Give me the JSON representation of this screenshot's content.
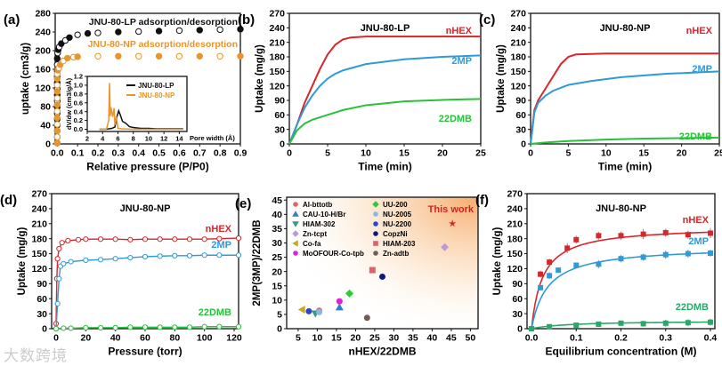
{
  "watermark": "大数跨境",
  "chart_data": [
    {
      "id": "a",
      "panel_label": "(a)",
      "type": "scatter",
      "xlabel": "Relative pressure (P/P0)",
      "ylabel": "uptake (cm3/g)",
      "xlim": [
        -0.01,
        0.9
      ],
      "ylim": [
        0,
        280
      ],
      "xticks": [
        "0.0",
        "0.1",
        "0.2",
        "0.3",
        "0.4",
        "0.5",
        "0.6",
        "0.7",
        "0.8",
        "0.9"
      ],
      "xtick_values": [
        0,
        0.1,
        0.2,
        0.3,
        0.4,
        0.5,
        0.6,
        0.7,
        0.8,
        0.9
      ],
      "yticks": [
        "0",
        "40",
        "80",
        "120",
        "160",
        "200",
        "240",
        "280"
      ],
      "ytick_values": [
        0,
        40,
        80,
        120,
        160,
        200,
        240,
        280
      ],
      "series": [
        {
          "name": "JNU-80-LP adsorption/desorption",
          "color": "#111111",
          "x": [
            0,
            0,
            0,
            0,
            0,
            0,
            0,
            0,
            0,
            0,
            0,
            0,
            0,
            0,
            0,
            0.002,
            0.005,
            0.01,
            0.02,
            0.04,
            0.06,
            0.1,
            0.15,
            0.2,
            0.3,
            0.4,
            0.5,
            0.6,
            0.7,
            0.8,
            0.9
          ],
          "y": [
            2,
            15,
            28,
            40,
            53,
            66,
            79,
            92,
            105,
            118,
            131,
            144,
            157,
            170,
            183,
            195,
            202,
            208,
            215,
            222,
            228,
            234,
            237,
            238,
            240,
            241,
            242,
            243,
            244,
            245,
            246
          ]
        },
        {
          "name": "JNU-80-NP adsorption/desorption",
          "color": "#e8952e",
          "x": [
            0,
            0,
            0,
            0,
            0,
            0,
            0,
            0,
            0,
            0,
            0,
            0,
            0.003,
            0.008,
            0.015,
            0.03,
            0.05,
            0.08,
            0.1,
            0.2,
            0.3,
            0.4,
            0.5,
            0.6,
            0.7,
            0.8,
            0.9
          ],
          "y": [
            2,
            15,
            28,
            42,
            56,
            70,
            84,
            98,
            112,
            126,
            140,
            150,
            158,
            163,
            170,
            178,
            184,
            186,
            187,
            188,
            188,
            188,
            188,
            188,
            188,
            188,
            188
          ]
        }
      ],
      "inset": {
        "xlabel": "Pore width (Å)",
        "ylabel": "dV/dw (cm3/g/Å)",
        "xlim": [
          2,
          15
        ],
        "ylim": [
          -0.05,
          1.2
        ],
        "xticks": [
          "2",
          "4",
          "6",
          "8",
          "10",
          "12",
          "14"
        ],
        "xtick_values": [
          2,
          4,
          6,
          8,
          10,
          12,
          14
        ],
        "yticks": [
          "0.0",
          "0.2",
          "0.4",
          "0.6",
          "0.8",
          "1.0",
          "1.2"
        ],
        "ytick_values": [
          0,
          0.2,
          0.4,
          0.6,
          0.8,
          1.0,
          1.2
        ],
        "series": [
          {
            "name": "JNU-80-LP",
            "color": "#111111",
            "x": [
              3.6,
              4.5,
              5.2,
              5.6,
              5.9,
              6.1,
              6.3,
              6.6,
              7.0,
              7.5,
              8,
              9,
              10,
              11,
              12,
              13,
              14.5
            ],
            "y": [
              0,
              0,
              0.02,
              0.05,
              0.3,
              0.42,
              0.33,
              0.18,
              0.14,
              0.06,
              0.04,
              0.02,
              0.02,
              0.01,
              0.01,
              0.01,
              0.01
            ]
          },
          {
            "name": "JNU-80-NP",
            "color": "#e8952e",
            "x": [
              3.6,
              4.5,
              4.8,
              4.9,
              5.0,
              5.1,
              5.3,
              5.5,
              5.6,
              5.8,
              6.0,
              6.5,
              8,
              10,
              12,
              14.5
            ],
            "y": [
              0,
              0,
              0.2,
              1.05,
              0.3,
              0.5,
              0.28,
              0.48,
              0.1,
              0.3,
              0.02,
              0.01,
              0,
              0,
              0,
              0
            ]
          }
        ]
      }
    },
    {
      "id": "b",
      "panel_label": "(b)",
      "type": "line",
      "title": "JNU-80-LP",
      "xlabel": "Time (min)",
      "ylabel": "Uptake (mg/g)",
      "xlim": [
        0,
        25
      ],
      "ylim": [
        0,
        270
      ],
      "xticks": [
        "0",
        "5",
        "10",
        "15",
        "20",
        "25"
      ],
      "xtick_values": [
        0,
        5,
        10,
        15,
        20,
        25
      ],
      "yticks": [
        "0",
        "30",
        "60",
        "90",
        "120",
        "150",
        "180",
        "210",
        "240",
        "270"
      ],
      "ytick_values": [
        0,
        30,
        60,
        90,
        120,
        150,
        180,
        210,
        240,
        270
      ],
      "series": [
        {
          "name": "nHEX",
          "color": "#d8262b",
          "x": [
            0,
            1,
            2,
            3,
            4,
            5,
            6,
            7,
            8,
            10,
            25
          ],
          "y": [
            0,
            40,
            85,
            120,
            155,
            185,
            205,
            216,
            220,
            222,
            222
          ]
        },
        {
          "name": "2MP",
          "color": "#2f9ad8",
          "x": [
            0,
            1,
            2,
            3,
            4,
            5,
            6,
            7,
            10,
            15,
            20,
            25
          ],
          "y": [
            0,
            40,
            75,
            100,
            120,
            135,
            145,
            152,
            165,
            175,
            180,
            183
          ]
        },
        {
          "name": "22DMB",
          "color": "#27c23a",
          "x": [
            0,
            1,
            2,
            3,
            5,
            7,
            10,
            15,
            20,
            25
          ],
          "y": [
            0,
            28,
            42,
            50,
            60,
            70,
            80,
            88,
            91,
            93
          ]
        }
      ]
    },
    {
      "id": "c",
      "panel_label": "(c)",
      "type": "line",
      "title": "JNU-80-NP",
      "xlabel": "Time (min)",
      "ylabel": "Uptake (mg/g)",
      "xlim": [
        0,
        25
      ],
      "ylim": [
        0,
        270
      ],
      "xticks": [
        "0",
        "5",
        "10",
        "15",
        "20",
        "25"
      ],
      "xtick_values": [
        0,
        5,
        10,
        15,
        20,
        25
      ],
      "yticks": [
        "0",
        "30",
        "60",
        "90",
        "120",
        "150",
        "180",
        "210",
        "240",
        "270"
      ],
      "ytick_values": [
        0,
        30,
        60,
        90,
        120,
        150,
        180,
        210,
        240,
        270
      ],
      "series": [
        {
          "name": "nHEX",
          "color": "#d8262b",
          "x": [
            0,
            0.5,
            1,
            2,
            3,
            4,
            5,
            6,
            10,
            25
          ],
          "y": [
            0,
            70,
            90,
            115,
            140,
            165,
            180,
            185,
            187,
            187
          ]
        },
        {
          "name": "2MP",
          "color": "#2f9ad8",
          "x": [
            0,
            0.5,
            1,
            2,
            3,
            5,
            8,
            12,
            18,
            25
          ],
          "y": [
            0,
            65,
            85,
            100,
            110,
            122,
            130,
            138,
            145,
            150
          ]
        },
        {
          "name": "22DMB",
          "color": "#27c23a",
          "x": [
            0,
            2,
            5,
            10,
            15,
            25
          ],
          "y": [
            0,
            3,
            6,
            9,
            11,
            13
          ]
        }
      ]
    },
    {
      "id": "d",
      "panel_label": "(d)",
      "type": "line",
      "title": "JNU-80-NP",
      "xlabel": "Pressure (torr)",
      "ylabel": "Uptake (mg/g)",
      "xlim": [
        -3,
        123
      ],
      "ylim": [
        0,
        270
      ],
      "xticks": [
        "0",
        "20",
        "40",
        "60",
        "80",
        "100",
        "120"
      ],
      "xtick_values": [
        0,
        20,
        40,
        60,
        80,
        100,
        120
      ],
      "yticks": [
        "0",
        "30",
        "60",
        "90",
        "120",
        "150",
        "180",
        "210",
        "240",
        "270"
      ],
      "ytick_values": [
        0,
        30,
        60,
        90,
        120,
        150,
        180,
        210,
        240,
        270
      ],
      "series": [
        {
          "name": "nHEX",
          "color": "#d8262b",
          "x": [
            0,
            0.5,
            1,
            2,
            4,
            8,
            15,
            20,
            30,
            40,
            50,
            60,
            70,
            80,
            90,
            100,
            110,
            123
          ],
          "y": [
            10,
            100,
            140,
            160,
            172,
            176,
            178,
            179,
            179,
            179,
            178,
            179,
            179,
            179,
            179,
            179,
            180,
            181
          ]
        },
        {
          "name": "2MP",
          "color": "#2f9ad8",
          "x": [
            0,
            1,
            2,
            3,
            5,
            10,
            20,
            30,
            40,
            50,
            60,
            70,
            80,
            90,
            100,
            110,
            123
          ],
          "y": [
            0,
            50,
            100,
            125,
            130,
            134,
            137,
            138,
            140,
            142,
            144,
            145,
            146,
            146,
            147,
            147,
            147
          ]
        },
        {
          "name": "22DMB",
          "color": "#27c23a",
          "x": [
            0,
            5,
            10,
            20,
            30,
            40,
            50,
            60,
            70,
            80,
            90,
            100,
            110,
            123
          ],
          "y": [
            0,
            1,
            1,
            2,
            2,
            2,
            3,
            3,
            3,
            3,
            3,
            4,
            4,
            4
          ]
        }
      ]
    },
    {
      "id": "e",
      "panel_label": "(e)",
      "type": "scatter",
      "xlabel": "nHEX/22DMB",
      "ylabel": "2MP(3MP)/22DMB",
      "xlim": [
        2,
        52
      ],
      "ylim": [
        0,
        46
      ],
      "xticks": [
        "5",
        "10",
        "15",
        "20",
        "25",
        "30",
        "35",
        "40",
        "45",
        "50"
      ],
      "xtick_values": [
        5,
        10,
        15,
        20,
        25,
        30,
        35,
        40,
        45,
        50
      ],
      "yticks": [
        "0",
        "5",
        "10",
        "15",
        "20",
        "25",
        "30",
        "35",
        "40",
        "45"
      ],
      "ytick_values": [
        0,
        5,
        10,
        15,
        20,
        25,
        30,
        35,
        40,
        45
      ],
      "annotation": "This work",
      "points": [
        {
          "name": "Al-bttotb",
          "color": "#e0675c",
          "marker": "circle",
          "x": 10.5,
          "y": 6.3
        },
        {
          "name": "CAU-10-H/Br",
          "color": "#2f7fc8",
          "marker": "triangle-up",
          "x": 15.8,
          "y": 7.5
        },
        {
          "name": "HIAM-302",
          "color": "#3a9a88",
          "marker": "triangle-down",
          "x": 9.5,
          "y": 5.3
        },
        {
          "name": "Zn-tcpt",
          "color": "#b99bd8",
          "marker": "diamond",
          "x": 43.3,
          "y": 28.5
        },
        {
          "name": "Co-fa",
          "color": "#c9a52a",
          "marker": "triangle-left",
          "x": 6.0,
          "y": 6.7
        },
        {
          "name": "MoOFOUR-Co-tpb",
          "color": "#e020d8",
          "marker": "circle",
          "x": 15.8,
          "y": 9.6
        },
        {
          "name": "UU-200",
          "color": "#2fc83a",
          "marker": "diamond",
          "x": 18.4,
          "y": 12.3
        },
        {
          "name": "NU-2005",
          "color": "#8ab8e0",
          "marker": "circle",
          "x": 10.5,
          "y": 5.8
        },
        {
          "name": "NU-2200",
          "color": "#2a47c8",
          "marker": "circle",
          "x": 7.8,
          "y": 6.1
        },
        {
          "name": "CopzNi",
          "color": "#0d1a7a",
          "marker": "circle",
          "x": 27.0,
          "y": 18.2
        },
        {
          "name": "HIAM-203",
          "color": "#e0606a",
          "marker": "square",
          "x": 24.4,
          "y": 20.5
        },
        {
          "name": "Zn-adtb",
          "color": "#7a5a55",
          "marker": "circle",
          "x": 23.0,
          "y": 3.8
        },
        {
          "name": "This work",
          "color": "#d82020",
          "marker": "star",
          "x": 45.3,
          "y": 36.8
        }
      ]
    },
    {
      "id": "f",
      "panel_label": "(f)",
      "type": "scatter",
      "title": "JNU-80-NP",
      "xlabel": "Equilibrium concentration (M)",
      "ylabel": "Uptake (mg/g)",
      "xlim": [
        -0.01,
        0.41
      ],
      "ylim": [
        0,
        270
      ],
      "xticks": [
        "0.0",
        "0.1",
        "0.2",
        "0.3",
        "0.4"
      ],
      "xtick_values": [
        0,
        0.1,
        0.2,
        0.3,
        0.4
      ],
      "yticks": [
        "0",
        "30",
        "60",
        "90",
        "120",
        "150",
        "180",
        "210",
        "240",
        "270"
      ],
      "ytick_values": [
        0,
        30,
        60,
        90,
        120,
        150,
        180,
        210,
        240,
        270
      ],
      "series": [
        {
          "name": "nHEX",
          "color": "#d8262b",
          "x": [
            0,
            0.02,
            0.04,
            0.08,
            0.1,
            0.15,
            0.2,
            0.25,
            0.3,
            0.35,
            0.4
          ],
          "y": [
            0,
            109,
            133,
            161,
            178,
            186,
            186,
            189,
            192,
            188,
            191
          ],
          "err": [
            0,
            7,
            7,
            10,
            8,
            8,
            8,
            10,
            8,
            8,
            10
          ],
          "fit_qmax": 205,
          "fit_b": 40
        },
        {
          "name": "2MP",
          "color": "#2f9ad8",
          "x": [
            0,
            0.02,
            0.04,
            0.06,
            0.1,
            0.15,
            0.2,
            0.25,
            0.3,
            0.35,
            0.4
          ],
          "y": [
            0,
            82,
            106,
            117,
            127,
            129,
            140,
            143,
            148,
            150,
            151
          ],
          "err": [
            0,
            5,
            7,
            5,
            4,
            8,
            7,
            7,
            8,
            8,
            7
          ],
          "fit_qmax": 165,
          "fit_b": 28
        },
        {
          "name": "22DMB",
          "color": "#2aa86a",
          "x": [
            0,
            0.04,
            0.1,
            0.15,
            0.2,
            0.25,
            0.3,
            0.35,
            0.4
          ],
          "y": [
            0,
            4,
            7,
            9,
            11,
            10,
            11,
            12,
            13
          ],
          "err": [
            0,
            4,
            4,
            5,
            5,
            6,
            7,
            7,
            7
          ],
          "fit_qmax": 16,
          "fit_b": 12
        }
      ]
    }
  ]
}
